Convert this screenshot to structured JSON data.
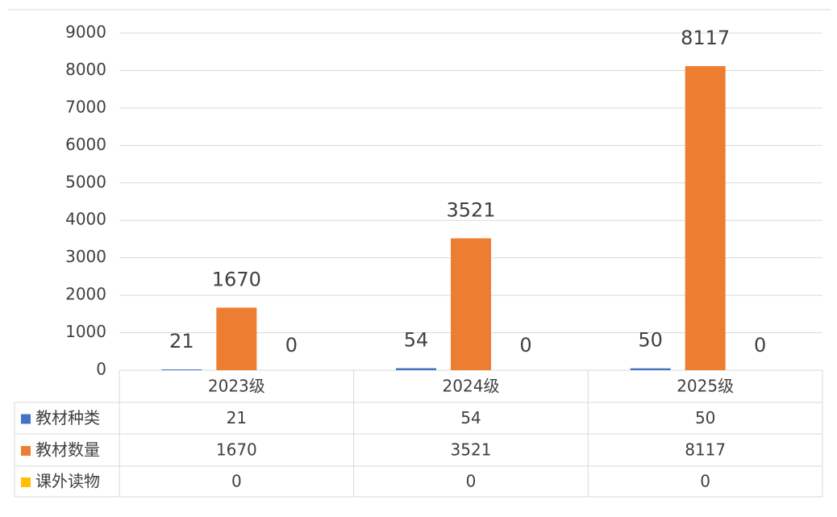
{
  "chart_data": {
    "type": "bar",
    "categories": [
      "2023级",
      "2024级",
      "2025级"
    ],
    "series": [
      {
        "name": "教材种类",
        "color": "#4472c4",
        "values": [
          21,
          54,
          50
        ]
      },
      {
        "name": "教材数量",
        "color": "#ed7d31",
        "values": [
          1670,
          3521,
          8117
        ]
      },
      {
        "name": "课外读物",
        "color": "#ffc000",
        "values": [
          0,
          0,
          0
        ]
      }
    ],
    "ylim": [
      0,
      9000
    ],
    "yticks": [
      0,
      1000,
      2000,
      3000,
      4000,
      5000,
      6000,
      7000,
      8000,
      9000
    ],
    "grid": true,
    "data_table": true
  }
}
